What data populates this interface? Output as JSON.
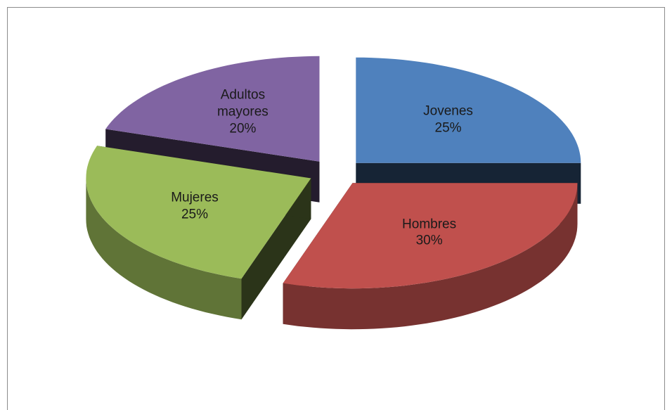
{
  "chart_data": {
    "type": "pie3d",
    "categories": [
      "Jovenes",
      "Hombres",
      "Mujeres",
      "Adultos mayores"
    ],
    "values": [
      25,
      30,
      25,
      20
    ],
    "value_labels": [
      "25%",
      "30%",
      "25%",
      "20%"
    ],
    "colors": [
      "#4f81bd",
      "#c0504d",
      "#9bbb59",
      "#8064a2"
    ]
  }
}
